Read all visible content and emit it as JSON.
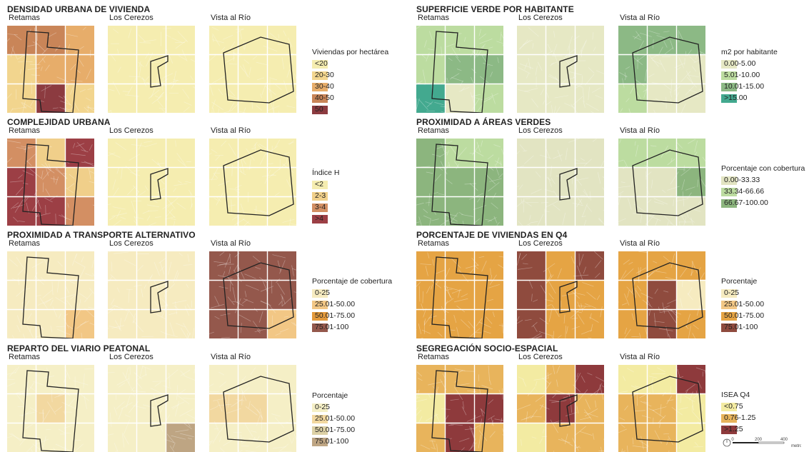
{
  "col_labels": [
    "Retamas",
    "Los Cerezos",
    "Vista al Río"
  ],
  "panels": [
    {
      "id": "densidad",
      "title": "DENSIDAD URBANA DE VIVIENDA",
      "legend_title": "Viviendas por hectárea",
      "classes": [
        {
          "label": "<20",
          "color": "#f5edb0"
        },
        {
          "label": "20-30",
          "color": "#f2d58e"
        },
        {
          "label": "30-40",
          "color": "#e7ad6a"
        },
        {
          "label": "40-50",
          "color": "#c98558"
        },
        {
          "label": "50",
          "color": "#8c3b40",
          "label_full": ">50"
        }
      ],
      "maps": [
        [
          3,
          3,
          2,
          1,
          2,
          2,
          1,
          4,
          1
        ],
        [
          0,
          0,
          0,
          0,
          0,
          0,
          0,
          0,
          0
        ],
        [
          0,
          0,
          0,
          0,
          0,
          0,
          0,
          0,
          0
        ]
      ]
    },
    {
      "id": "verde",
      "title": "SUPERFICIE VERDE POR HABITANTE",
      "legend_title": "m2 por habitante",
      "classes": [
        {
          "label": "0.00-5.00",
          "color": "#e6e8c4"
        },
        {
          "label": "5.01-10.00",
          "color": "#bcdca0"
        },
        {
          "label": "10.01-15.00",
          "color": "#8cb985"
        },
        {
          "label": ">15.00",
          "color": "#43a98f"
        }
      ],
      "maps": [
        [
          1,
          1,
          1,
          1,
          2,
          2,
          3,
          0,
          1
        ],
        [
          0,
          0,
          0,
          0,
          0,
          0,
          0,
          0,
          0
        ],
        [
          2,
          2,
          2,
          2,
          0,
          0,
          1,
          0,
          0
        ]
      ]
    },
    {
      "id": "complejidad",
      "title": "COMPLEJIDAD URBANA",
      "legend_title": "Índice H",
      "classes": [
        {
          "label": "<2",
          "color": "#f5edb0"
        },
        {
          "label": "2-3",
          "color": "#f0cf8a"
        },
        {
          "label": "3-4",
          "color": "#d38f63"
        },
        {
          "label": ">4",
          "color": "#9c3f45"
        }
      ],
      "maps": [
        [
          2,
          1,
          3,
          3,
          2,
          1,
          3,
          3,
          2
        ],
        [
          0,
          0,
          0,
          0,
          0,
          0,
          0,
          0,
          0
        ],
        [
          0,
          0,
          0,
          0,
          0,
          0,
          0,
          0,
          0
        ]
      ]
    },
    {
      "id": "prox_verde",
      "title": "PROXIMIDAD A ÁREAS VERDES",
      "legend_title": "Porcentaje con cobertura",
      "classes": [
        {
          "label": "0.00-33.33",
          "color": "#e2e4c2"
        },
        {
          "label": "33.34-66.66",
          "color": "#bcdca0"
        },
        {
          "label": "66.67-100.00",
          "color": "#8cb57e"
        }
      ],
      "maps": [
        [
          2,
          1,
          1,
          2,
          2,
          2,
          2,
          2,
          2
        ],
        [
          0,
          0,
          0,
          0,
          0,
          0,
          0,
          0,
          0
        ],
        [
          1,
          1,
          1,
          0,
          0,
          2,
          0,
          0,
          0
        ]
      ]
    },
    {
      "id": "transporte",
      "title": "PROXIMIDAD A TRANSPORTE ALTERNATIVO",
      "legend_title": "Porcentaje de cobertura",
      "classes": [
        {
          "label": "0-25",
          "color": "#f6ebc0"
        },
        {
          "label": "25.01-50.00",
          "color": "#f2c785"
        },
        {
          "label": "50.01-75.00",
          "color": "#e39a3c"
        },
        {
          "label": "75.01-100",
          "color": "#94584c"
        }
      ],
      "maps": [
        [
          0,
          0,
          0,
          0,
          0,
          0,
          0,
          0,
          1
        ],
        [
          0,
          0,
          0,
          0,
          0,
          0,
          0,
          0,
          0
        ],
        [
          3,
          3,
          3,
          3,
          3,
          3,
          3,
          3,
          1
        ]
      ]
    },
    {
      "id": "q4",
      "title": "PORCENTAJE DE VIVIENDAS EN Q4",
      "legend_title": "Porcentaje",
      "classes": [
        {
          "label": "0-25",
          "color": "#f6ebc0"
        },
        {
          "label": "25.01-50.00",
          "color": "#f2c785"
        },
        {
          "label": "50.01-75.00",
          "color": "#e5a444"
        },
        {
          "label": "75.01-100",
          "color": "#8f4b3e"
        }
      ],
      "maps": [
        [
          2,
          2,
          2,
          2,
          2,
          2,
          2,
          2,
          2
        ],
        [
          3,
          2,
          3,
          3,
          2,
          2,
          3,
          2,
          2
        ],
        [
          2,
          2,
          2,
          2,
          3,
          0,
          2,
          3,
          2
        ]
      ]
    },
    {
      "id": "viario",
      "title": "REPARTO DEL VIARIO PEATONAL",
      "legend_title": "Porcentaje",
      "classes": [
        {
          "label": "0-25",
          "color": "#f5efc6"
        },
        {
          "label": "25.01-50.00",
          "color": "#f2d8a0"
        },
        {
          "label": "50.01-75.00",
          "color": "#ddd1a6"
        },
        {
          "label": "75.01-100",
          "color": "#bea583"
        }
      ],
      "maps": [
        [
          0,
          0,
          0,
          0,
          1,
          0,
          0,
          0,
          0
        ],
        [
          0,
          0,
          0,
          0,
          0,
          0,
          0,
          0,
          3
        ],
        [
          0,
          0,
          0,
          1,
          1,
          0,
          0,
          0,
          0
        ]
      ]
    },
    {
      "id": "segregacion",
      "title": "SEGREGACIÓN SOCIO-ESPACIAL",
      "legend_title": "ISEA Q4",
      "classes": [
        {
          "label": "<0.75",
          "color": "#f3eba2"
        },
        {
          "label": "0.76-1.25",
          "color": "#e8b45c"
        },
        {
          "label": ">1.25",
          "color": "#8e3a3c"
        }
      ],
      "maps": [
        [
          1,
          1,
          1,
          0,
          2,
          2,
          1,
          2,
          1
        ],
        [
          0,
          1,
          2,
          1,
          2,
          1,
          0,
          1,
          1
        ],
        [
          0,
          0,
          2,
          1,
          1,
          0,
          1,
          1,
          0
        ]
      ]
    }
  ],
  "scale": {
    "ticks": [
      "0",
      "200",
      "400"
    ],
    "unit": "metros"
  }
}
